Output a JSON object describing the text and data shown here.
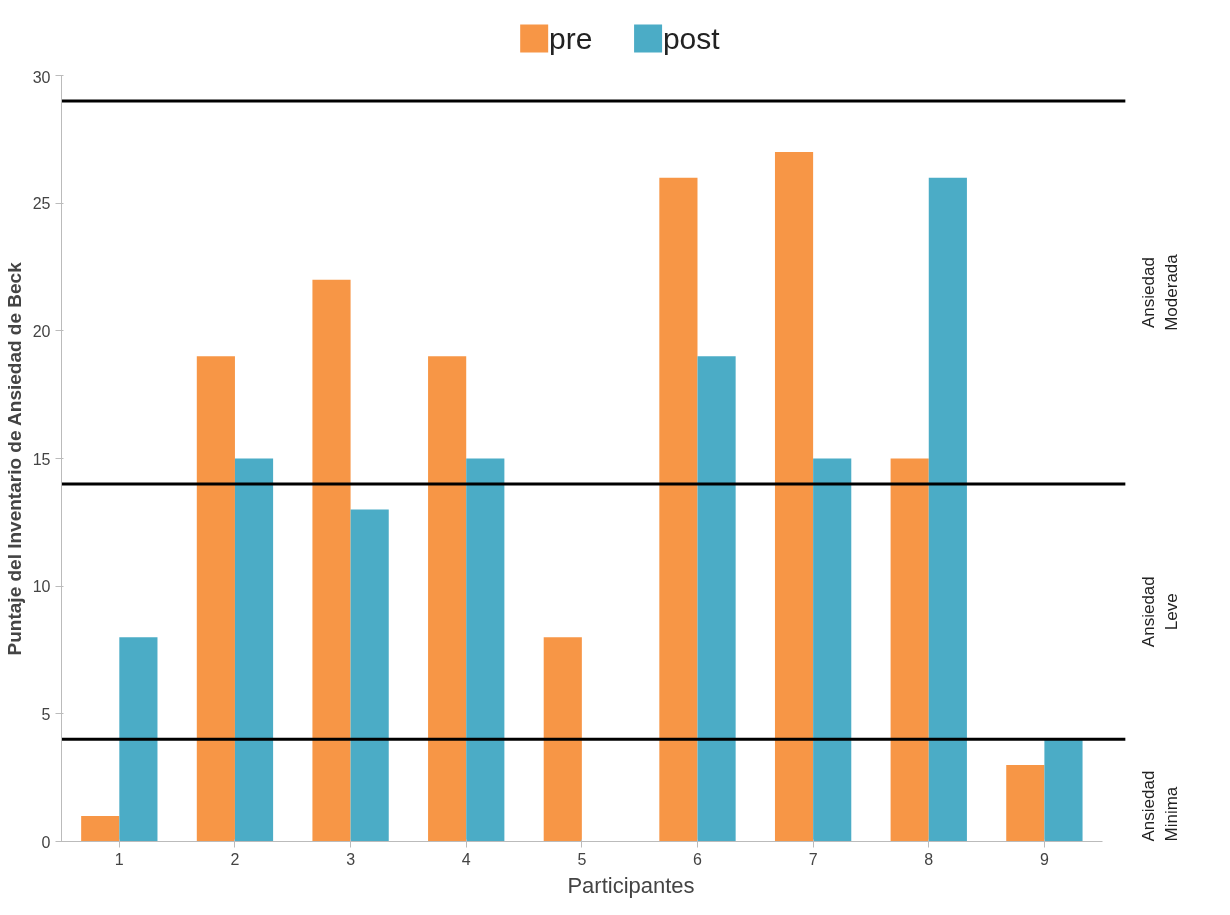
{
  "chart_data": {
    "type": "bar",
    "xlabel": "Participantes",
    "ylabel": "Puntaje del Inventario de Ansiedad de Beck",
    "categories": [
      "1",
      "2",
      "3",
      "4",
      "5",
      "6",
      "7",
      "8",
      "9"
    ],
    "series": [
      {
        "name": "pre",
        "color": "#f79646",
        "values": [
          1,
          19,
          22,
          19,
          8,
          26,
          27,
          15,
          3
        ]
      },
      {
        "name": "post",
        "color": "#4bacc6",
        "values": [
          8,
          15,
          13,
          15,
          null,
          19,
          15,
          26,
          4
        ]
      }
    ],
    "ylim": [
      0,
      30
    ],
    "yticks": [
      0,
      5,
      10,
      15,
      20,
      25,
      30
    ],
    "grid": false,
    "legend": "top",
    "ref_lines": [
      {
        "axis": "y",
        "value": 29,
        "color": "#000000"
      },
      {
        "axis": "y",
        "value": 14,
        "color": "#000000"
      },
      {
        "axis": "y",
        "value": 4,
        "color": "#000000"
      }
    ],
    "annotations": [
      "Ansiedad Moderada",
      "Ansiedad Leve",
      "Ansiedad Minima"
    ]
  }
}
